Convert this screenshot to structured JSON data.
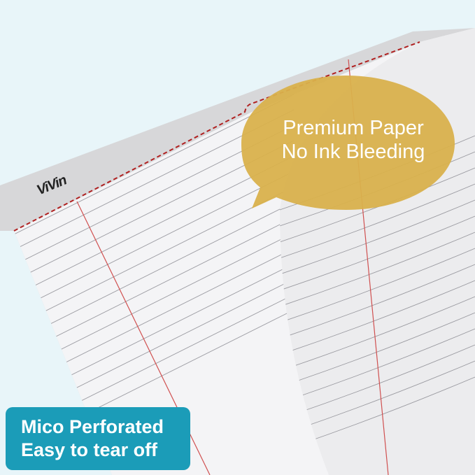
{
  "brand": {
    "logo": "ViVin"
  },
  "callout": {
    "line1": "Premium Paper",
    "line2": "No Ink Bleeding",
    "color": "#d9b14c"
  },
  "badge": {
    "line1": "Mico Perforated",
    "line2": "Easy to tear off",
    "color": "#1b9cb8"
  },
  "colors": {
    "background": "#e8f5f9",
    "margin_line": "#d04040",
    "rule_line": "#9a9aa0",
    "perforation": "#b02020"
  }
}
